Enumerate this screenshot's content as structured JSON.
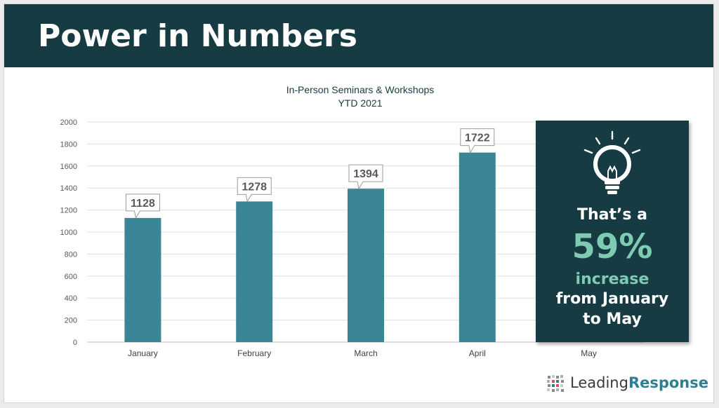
{
  "header": {
    "title": "Power in Numbers"
  },
  "chart_data": {
    "type": "bar",
    "title": "In-Person Seminars & Workshops",
    "subtitle": "YTD 2021",
    "categories": [
      "January",
      "February",
      "March",
      "April",
      "May"
    ],
    "values": [
      1128,
      1278,
      1394,
      1722,
      null
    ],
    "data_labels": [
      "1128",
      "1278",
      "1394",
      "1722",
      ""
    ],
    "ylim": [
      0,
      2000
    ],
    "yticks": [
      0,
      200,
      400,
      600,
      800,
      1000,
      1200,
      1400,
      1600,
      1800,
      2000
    ],
    "grid": true,
    "bar_color": "#3a8696",
    "xlabel": "",
    "ylabel": ""
  },
  "callout": {
    "line1": "That’s a",
    "percent": "59%",
    "line3": "increase",
    "line4": "from January",
    "line5": "to May",
    "icon": "lightbulb-icon",
    "accent_color": "#7ecbb2",
    "bg_color": "#173b42"
  },
  "logo": {
    "text_regular": "Leading",
    "text_bold": "Response"
  }
}
